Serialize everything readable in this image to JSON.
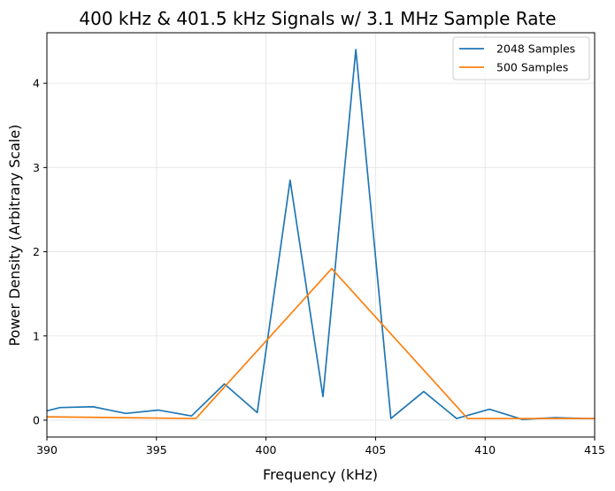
{
  "chart_data": {
    "type": "line",
    "title": "400 kHz & 401.5 kHz Signals w/ 3.1 MHz Sample Rate",
    "xlabel": "Frequency (kHz)",
    "ylabel": "Power Density (Arbitrary Scale)",
    "xlim": [
      390,
      415
    ],
    "ylim": [
      -0.2,
      4.6
    ],
    "xticks": [
      390,
      395,
      400,
      405,
      410,
      415
    ],
    "yticks": [
      0,
      1,
      2,
      3,
      4
    ],
    "grid": true,
    "legend_position": "top-right",
    "series": [
      {
        "name": "2048 Samples",
        "color": "#1f77b4",
        "x": [
          389.2,
          390.6,
          392.1,
          393.6,
          395.1,
          396.6,
          398.1,
          399.6,
          401.1,
          402.6,
          404.1,
          405.7,
          407.2,
          408.7,
          410.2,
          411.7,
          413.2,
          414.7,
          415.0
        ],
        "y": [
          0.06,
          0.15,
          0.16,
          0.08,
          0.12,
          0.05,
          0.43,
          0.09,
          2.85,
          0.28,
          4.4,
          0.02,
          0.34,
          0.02,
          0.13,
          0.01,
          0.03,
          0.02,
          0.02
        ]
      },
      {
        "name": "500 Samples",
        "color": "#ff7f0e",
        "x": [
          390.0,
          396.8,
          403.0,
          409.2,
          415.0
        ],
        "y": [
          0.04,
          0.02,
          1.8,
          0.02,
          0.02
        ]
      }
    ]
  }
}
